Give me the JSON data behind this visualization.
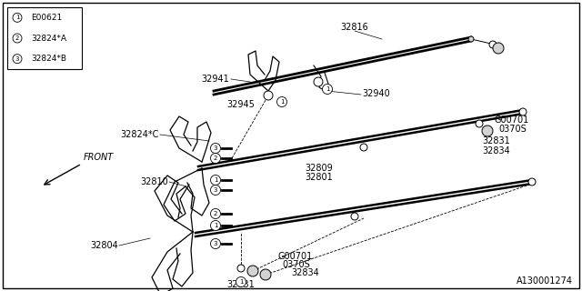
{
  "background_color": "#ffffff",
  "border_color": "#000000",
  "diagram_id": "A130001274",
  "legend": [
    {
      "num": "1",
      "code": "E00621"
    },
    {
      "num": "2",
      "code": "32824*A"
    },
    {
      "num": "3",
      "code": "32824*B"
    }
  ],
  "line_color": "#000000",
  "text_color": "#000000",
  "font_size": 7
}
